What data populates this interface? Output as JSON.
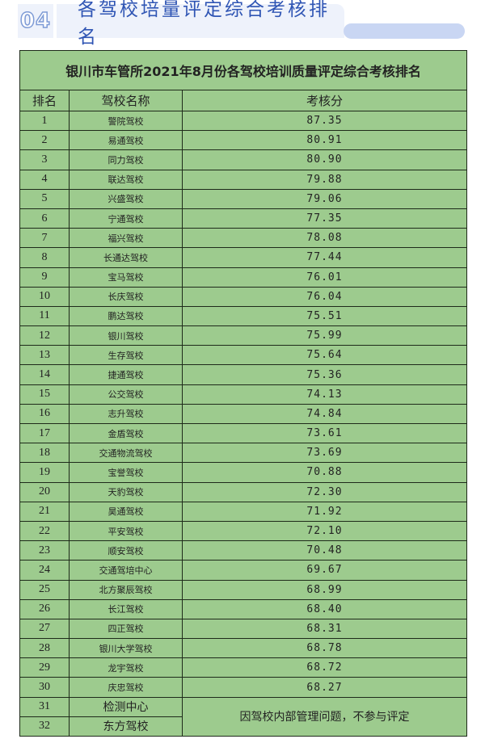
{
  "header": {
    "number": "04",
    "title": "各驾校培量评定综合考核排名"
  },
  "table": {
    "title": "银川市车管所2021年8月份各驾校培训质量评定综合考核排名",
    "columns": [
      "排名",
      "驾校名称",
      "考核分"
    ],
    "rows": [
      {
        "rank": "1",
        "name": "警院驾校",
        "score": "87.35"
      },
      {
        "rank": "2",
        "name": "易通驾校",
        "score": "80.91"
      },
      {
        "rank": "3",
        "name": "同力驾校",
        "score": "80.90"
      },
      {
        "rank": "4",
        "name": "联达驾校",
        "score": "79.88"
      },
      {
        "rank": "5",
        "name": "兴盛驾校",
        "score": "79.06"
      },
      {
        "rank": "6",
        "name": "宁通驾校",
        "score": "77.35"
      },
      {
        "rank": "7",
        "name": "福兴驾校",
        "score": "78.08"
      },
      {
        "rank": "8",
        "name": "长通达驾校",
        "score": "77.44"
      },
      {
        "rank": "9",
        "name": "宝马驾校",
        "score": "76.01"
      },
      {
        "rank": "10",
        "name": "长庆驾校",
        "score": "76.04"
      },
      {
        "rank": "11",
        "name": "鹏达驾校",
        "score": "75.51"
      },
      {
        "rank": "12",
        "name": "银川驾校",
        "score": "75.99"
      },
      {
        "rank": "13",
        "name": "生存驾校",
        "score": "75.64"
      },
      {
        "rank": "14",
        "name": "捷通驾校",
        "score": "75.36"
      },
      {
        "rank": "15",
        "name": "公交驾校",
        "score": "74.13"
      },
      {
        "rank": "16",
        "name": "志升驾校",
        "score": "74.84"
      },
      {
        "rank": "17",
        "name": "金盾驾校",
        "score": "73.61"
      },
      {
        "rank": "18",
        "name": "交通物流驾校",
        "score": "73.69"
      },
      {
        "rank": "19",
        "name": "宝誉驾校",
        "score": "70.88"
      },
      {
        "rank": "20",
        "name": "天豹驾校",
        "score": "72.30"
      },
      {
        "rank": "21",
        "name": "昊通驾校",
        "score": "71.92"
      },
      {
        "rank": "22",
        "name": "平安驾校",
        "score": "72.10"
      },
      {
        "rank": "23",
        "name": "顺安驾校",
        "score": "70.48"
      },
      {
        "rank": "24",
        "name": "交通驾培中心",
        "score": "69.67"
      },
      {
        "rank": "25",
        "name": "北方聚辰驾校",
        "score": "68.99"
      },
      {
        "rank": "26",
        "name": "长江驾校",
        "score": "68.40"
      },
      {
        "rank": "27",
        "name": "四正驾校",
        "score": "68.31"
      },
      {
        "rank": "28",
        "name": "银川大学驾校",
        "score": "68.78"
      },
      {
        "rank": "29",
        "name": "龙宇驾校",
        "score": "68.72"
      },
      {
        "rank": "30",
        "name": "庆忠驾校",
        "score": "68.27"
      }
    ],
    "excluded": [
      {
        "rank": "31",
        "name": "检测中心"
      },
      {
        "rank": "32",
        "name": "东方驾校"
      }
    ],
    "excluded_note": "因驾校内部管理问题，不参与评定"
  }
}
